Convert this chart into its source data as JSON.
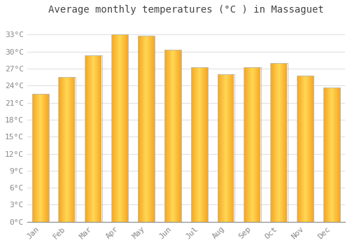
{
  "title": "Average monthly temperatures (°C ) in Massaguet",
  "months": [
    "Jan",
    "Feb",
    "Mar",
    "Apr",
    "May",
    "Jun",
    "Jul",
    "Aug",
    "Sep",
    "Oct",
    "Nov",
    "Dec"
  ],
  "values": [
    22.5,
    25.5,
    29.3,
    33.0,
    32.8,
    30.3,
    27.2,
    26.0,
    27.2,
    28.0,
    25.8,
    23.7
  ],
  "bar_color_center": "#FFD754",
  "bar_color_edge": "#F5A623",
  "bar_border_color": "#BBBBBB",
  "yticks": [
    0,
    3,
    6,
    9,
    12,
    15,
    18,
    21,
    24,
    27,
    30,
    33
  ],
  "ylim": [
    0,
    35.5
  ],
  "background_color": "#FFFFFF",
  "grid_color": "#E0E0E0",
  "title_fontsize": 10,
  "tick_fontsize": 8,
  "title_color": "#444444",
  "tick_color": "#888888",
  "font_family": "monospace"
}
